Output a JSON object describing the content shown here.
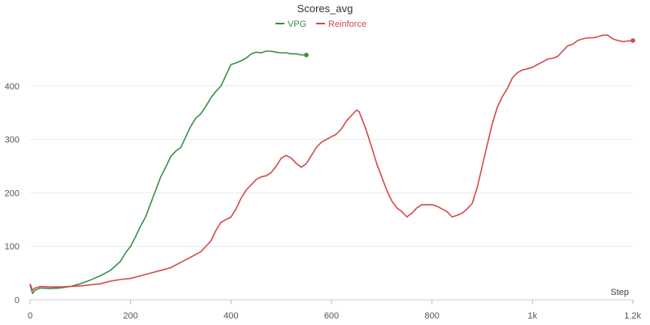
{
  "chart_data": {
    "type": "line",
    "title": "Scores_avg",
    "xlabel": "Step",
    "ylabel": "",
    "xlim": [
      0,
      1200
    ],
    "ylim": [
      0,
      500
    ],
    "x_ticks": [
      {
        "value": 0,
        "label": "0"
      },
      {
        "value": 200,
        "label": "200"
      },
      {
        "value": 400,
        "label": "400"
      },
      {
        "value": 600,
        "label": "600"
      },
      {
        "value": 800,
        "label": "800"
      },
      {
        "value": 1000,
        "label": "1k"
      },
      {
        "value": 1200,
        "label": "1.2k"
      }
    ],
    "y_ticks": [
      {
        "value": 0,
        "label": "0"
      },
      {
        "value": 100,
        "label": "100"
      },
      {
        "value": 200,
        "label": "200"
      },
      {
        "value": 300,
        "label": "300"
      },
      {
        "value": 400,
        "label": "400"
      }
    ],
    "grid": true,
    "legend": "top-center",
    "series": [
      {
        "name": "VPG",
        "color": "#3a8f48",
        "x": [
          0,
          5,
          10,
          20,
          40,
          60,
          80,
          100,
          120,
          140,
          160,
          180,
          190,
          200,
          210,
          220,
          230,
          240,
          250,
          260,
          270,
          280,
          290,
          300,
          310,
          320,
          330,
          340,
          350,
          360,
          370,
          380,
          390,
          400,
          410,
          420,
          430,
          440,
          450,
          460,
          470,
          480,
          490,
          500,
          510,
          520,
          530,
          540,
          550
        ],
        "y": [
          28,
          12,
          18,
          22,
          21,
          22,
          25,
          30,
          37,
          45,
          55,
          72,
          88,
          100,
          118,
          138,
          155,
          180,
          205,
          230,
          248,
          268,
          278,
          285,
          305,
          325,
          340,
          348,
          362,
          378,
          390,
          400,
          420,
          440,
          443,
          447,
          452,
          460,
          463,
          462,
          465,
          465,
          463,
          462,
          462,
          460,
          460,
          458,
          458
        ]
      },
      {
        "name": "Reinforce",
        "color": "#d34a4a",
        "x": [
          0,
          5,
          10,
          20,
          40,
          60,
          80,
          100,
          120,
          140,
          160,
          180,
          200,
          220,
          240,
          260,
          280,
          300,
          320,
          340,
          350,
          360,
          370,
          380,
          390,
          400,
          410,
          420,
          430,
          440,
          450,
          460,
          470,
          480,
          490,
          500,
          510,
          520,
          530,
          540,
          550,
          560,
          570,
          580,
          590,
          600,
          610,
          620,
          630,
          640,
          650,
          655,
          660,
          670,
          680,
          690,
          700,
          710,
          720,
          730,
          740,
          750,
          760,
          770,
          780,
          790,
          800,
          810,
          820,
          830,
          840,
          850,
          860,
          870,
          880,
          890,
          900,
          910,
          920,
          930,
          940,
          950,
          960,
          970,
          980,
          990,
          1000,
          1010,
          1020,
          1030,
          1040,
          1050,
          1060,
          1070,
          1080,
          1090,
          1100,
          1110,
          1120,
          1130,
          1140,
          1150,
          1160,
          1170,
          1180,
          1190,
          1200
        ],
        "y": [
          30,
          18,
          22,
          25,
          24,
          24,
          25,
          26,
          28,
          30,
          35,
          38,
          40,
          45,
          50,
          55,
          60,
          70,
          80,
          90,
          100,
          110,
          130,
          145,
          150,
          155,
          170,
          190,
          205,
          215,
          225,
          230,
          232,
          238,
          250,
          265,
          270,
          265,
          255,
          248,
          255,
          270,
          285,
          295,
          300,
          305,
          310,
          320,
          335,
          345,
          355,
          352,
          340,
          315,
          285,
          255,
          230,
          205,
          185,
          172,
          165,
          155,
          162,
          172,
          178,
          178,
          178,
          175,
          170,
          165,
          155,
          158,
          162,
          170,
          180,
          210,
          250,
          290,
          330,
          360,
          380,
          395,
          415,
          425,
          430,
          432,
          435,
          440,
          445,
          450,
          452,
          455,
          465,
          475,
          478,
          485,
          488,
          490,
          490,
          492,
          495,
          495,
          488,
          485,
          483,
          484,
          485
        ]
      }
    ]
  }
}
